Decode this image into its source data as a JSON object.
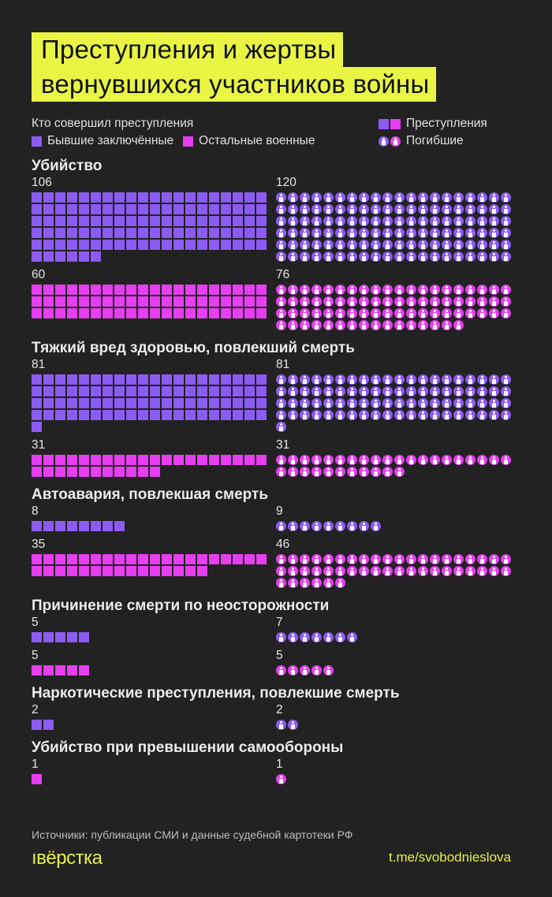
{
  "title": {
    "line1": "Преступления и жертвы",
    "line2": "вернувшихся участников войны"
  },
  "legend": {
    "who_label": "Кто совершил преступления",
    "prisoners": "Бывшие заключённые",
    "others": "Остальные военные",
    "crimes": "Преступления",
    "deaths": "Погибшие"
  },
  "colors": {
    "background": "#222222",
    "prisoners": "#8c5cf2",
    "others": "#e63ef0",
    "title_bg": "#e9f545",
    "accent_text": "#e3f04a"
  },
  "icons": {
    "crime": "square",
    "death": "person-in-circle-icon"
  },
  "chart_data": {
    "type": "waffle",
    "unit": "1 square = 1 crime, 1 person icon = 1 death",
    "categories": [
      "Убийство",
      "Тяжкий вред здоровью, повлекший смерть",
      "Автоавария, повлекшая смерть",
      "Причинение смерти по неосторожности",
      "Наркотические преступления, повлекшие смерть",
      "Убийство при превышении самообороны"
    ],
    "series": [
      {
        "name": "Бывшие заключённые",
        "crimes": [
          106,
          81,
          8,
          5,
          2,
          null
        ],
        "deaths": [
          120,
          81,
          9,
          7,
          2,
          null
        ]
      },
      {
        "name": "Остальные военные",
        "crimes": [
          60,
          31,
          35,
          5,
          null,
          1
        ],
        "deaths": [
          76,
          31,
          46,
          5,
          null,
          1
        ]
      }
    ]
  },
  "footer": {
    "sources": "Источники: публикации СМИ и данные судебной картотеки РФ",
    "logo": "ıвёрстка",
    "link": "t.me/svobodnieslova"
  }
}
